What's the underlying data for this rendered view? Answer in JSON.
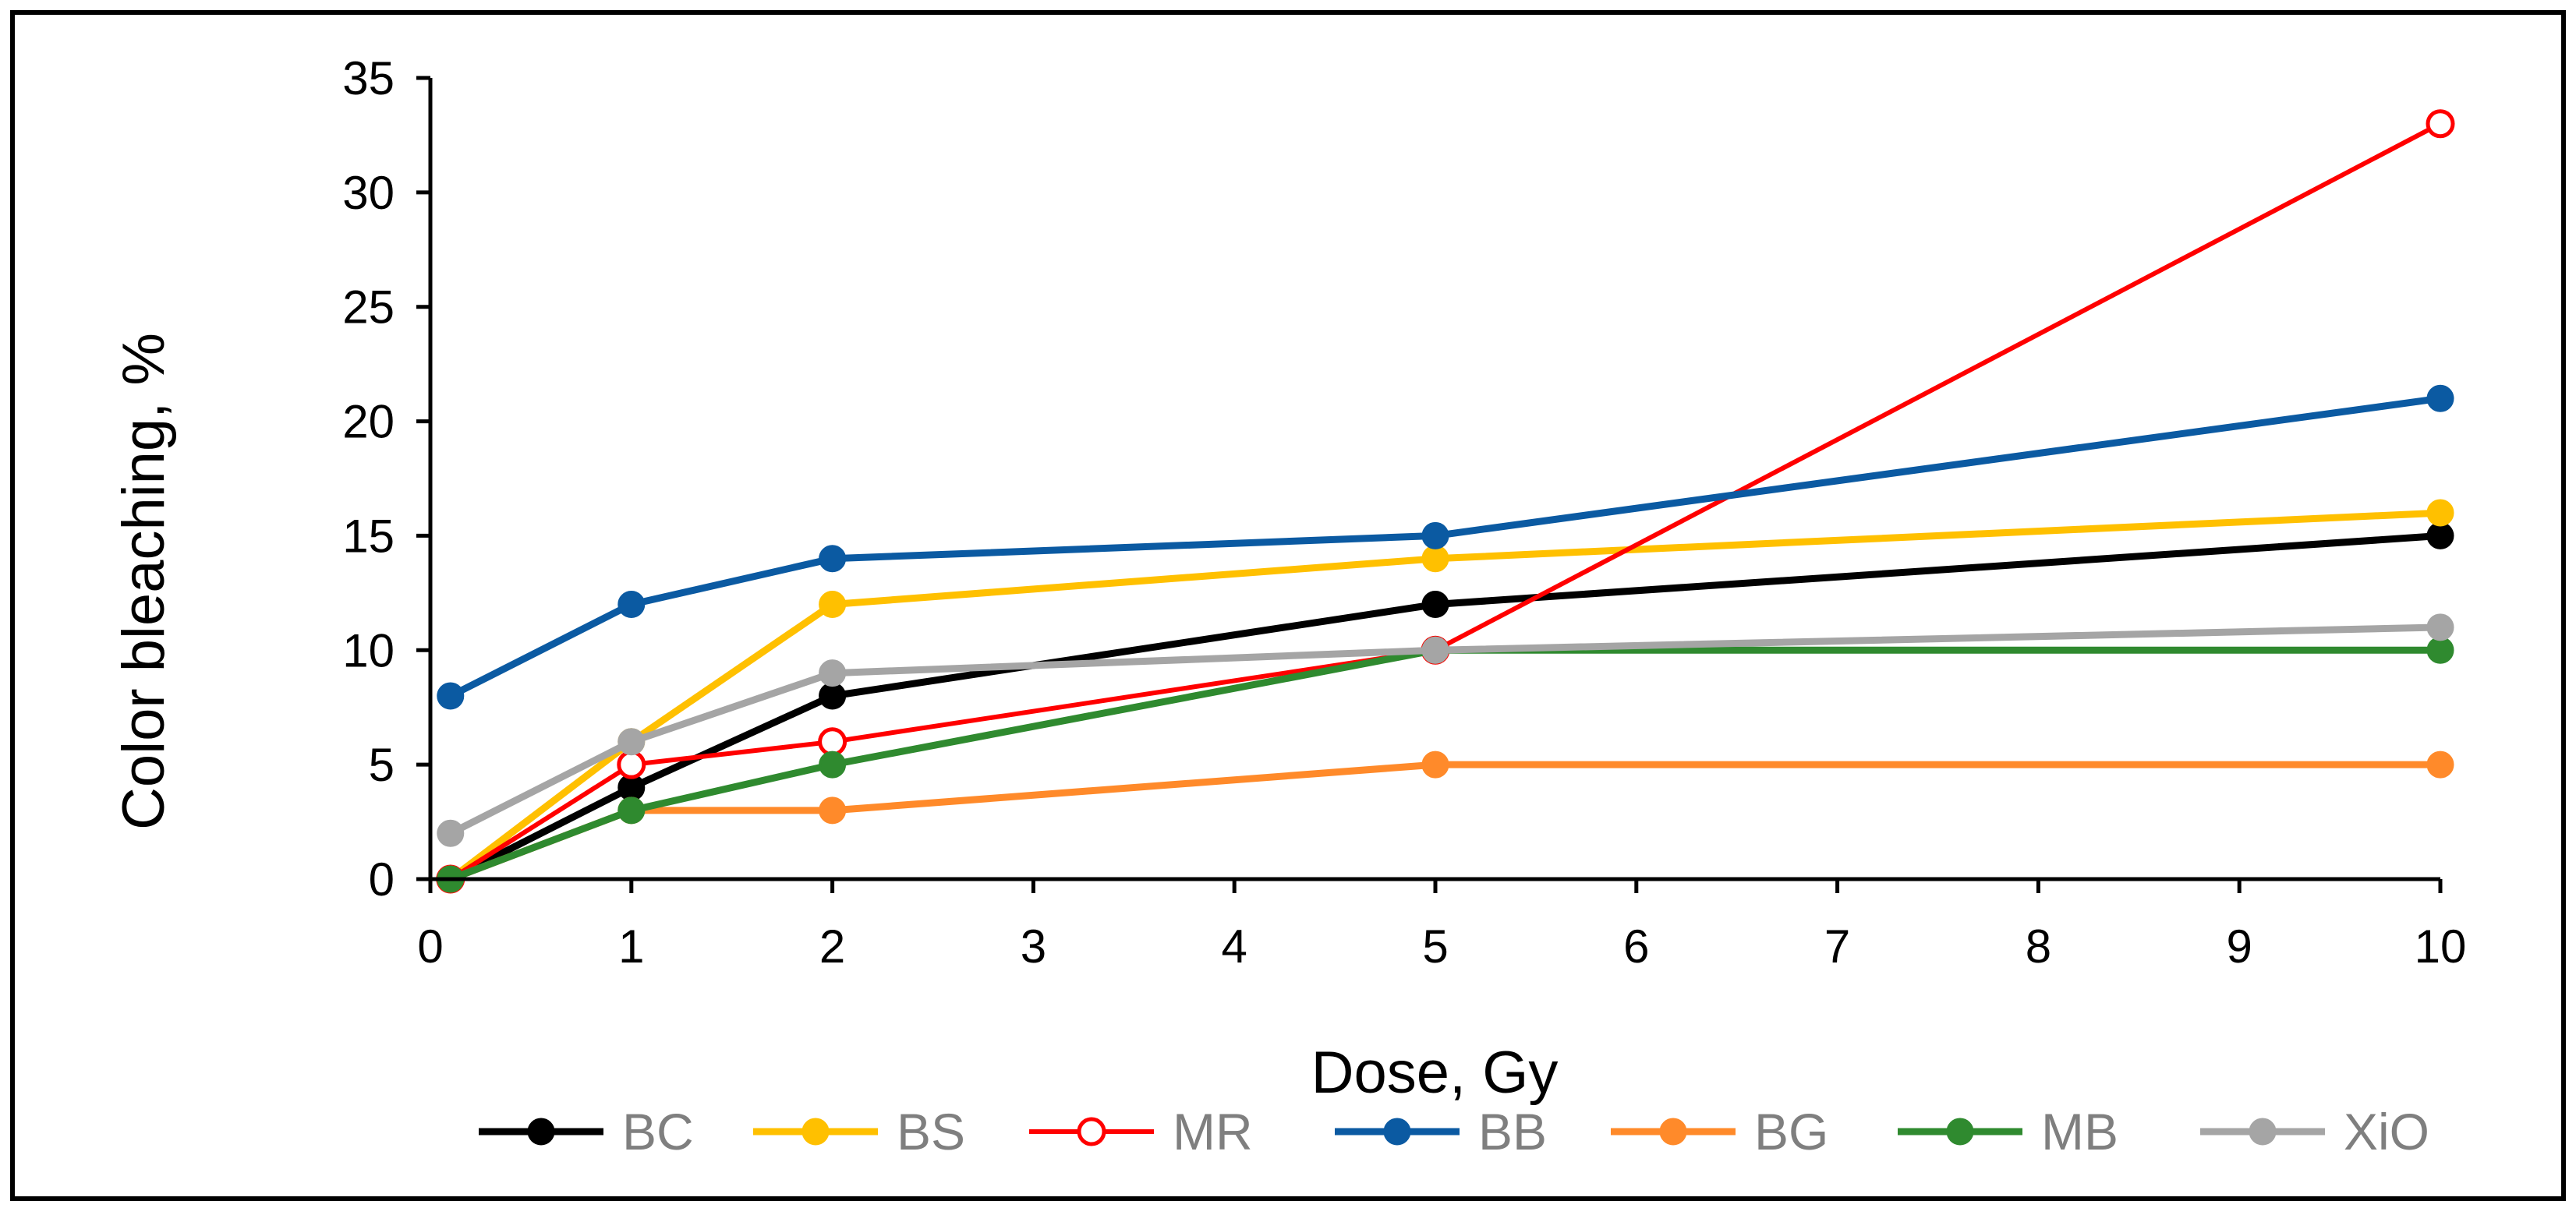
{
  "chart_data": {
    "type": "line",
    "title": "",
    "xlabel": "Dose, Gy",
    "ylabel": "Color bleaching, %",
    "xlim": [
      0,
      10
    ],
    "ylim": [
      0,
      35
    ],
    "xticks": [
      0,
      1,
      2,
      3,
      4,
      5,
      6,
      7,
      8,
      9,
      10
    ],
    "yticks": [
      0,
      5,
      10,
      15,
      20,
      25,
      30,
      35
    ],
    "grid": false,
    "legend_position": "bottom",
    "series": [
      {
        "name": "BC",
        "color": "#000000",
        "marker_fill": "#000000",
        "x": [
          0.1,
          1,
          2,
          5,
          10
        ],
        "values": [
          0,
          4,
          8,
          12,
          15
        ]
      },
      {
        "name": "BS",
        "color": "#FFC000",
        "marker_fill": "#FFC000",
        "x": [
          0.1,
          1,
          2,
          5,
          10
        ],
        "values": [
          0,
          6,
          12,
          14,
          16
        ]
      },
      {
        "name": "MR",
        "color": "#FF0000",
        "marker_fill": "#FFFFFF",
        "x": [
          0.1,
          1,
          2,
          5,
          10
        ],
        "values": [
          0,
          5,
          6,
          10,
          33
        ]
      },
      {
        "name": "BB",
        "color": "#0B5AA2",
        "marker_fill": "#0B5AA2",
        "x": [
          0.1,
          1,
          2,
          5,
          10
        ],
        "values": [
          8,
          12,
          14,
          15,
          21
        ]
      },
      {
        "name": "BG",
        "color": "#FF8A2A",
        "marker_fill": "#FF8A2A",
        "x": [
          0.1,
          1,
          2,
          5,
          10
        ],
        "values": [
          0,
          3,
          3,
          5,
          5
        ]
      },
      {
        "name": "MB",
        "color": "#2F8A2F",
        "marker_fill": "#2F8A2F",
        "x": [
          0.1,
          1,
          2,
          5,
          10
        ],
        "values": [
          0,
          3,
          5,
          10,
          10
        ]
      },
      {
        "name": "XiO",
        "color": "#A5A5A5",
        "marker_fill": "#A5A5A5",
        "x": [
          0.1,
          1,
          2,
          5,
          10
        ],
        "values": [
          2,
          6,
          9,
          10,
          11
        ]
      }
    ]
  }
}
